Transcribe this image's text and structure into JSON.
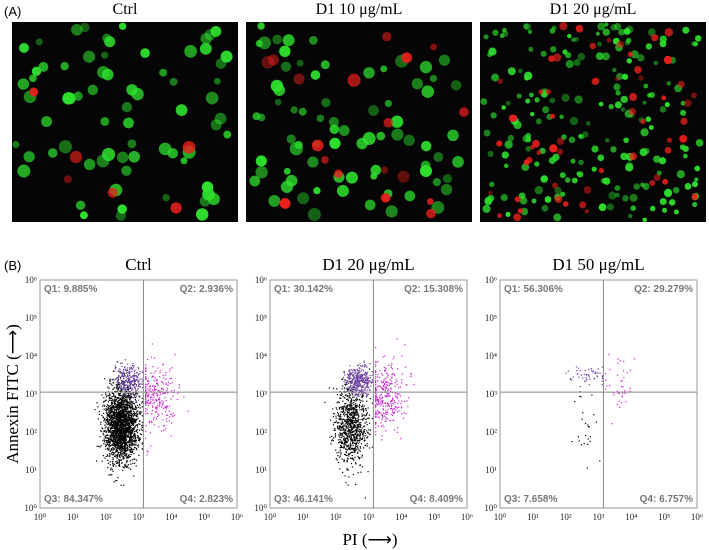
{
  "panel_a": {
    "label": "(A)",
    "images": [
      {
        "title": "Ctrl"
      },
      {
        "title": "D1 10 μg/mL"
      },
      {
        "title": "D1 20 μg/mL"
      }
    ]
  },
  "panel_b": {
    "label": "(B)",
    "y_axis_label": "Annexin FITC (⟶)",
    "x_axis_label": "PI (⟶)",
    "tick_labels": [
      "10⁰",
      "10¹",
      "10²",
      "10³",
      "10⁴",
      "10⁵",
      "10⁶"
    ],
    "plots": [
      {
        "title": "Ctrl",
        "quadrants": [
          "Q1: 9.885%",
          "Q2: 2.936%",
          "Q3: 84.347%",
          "Q4: 2.823%"
        ]
      },
      {
        "title": "D1 20 μg/mL",
        "quadrants": [
          "Q1: 30.142%",
          "Q2: 15.308%",
          "Q3: 46.141%",
          "Q4: 8.409%"
        ]
      },
      {
        "title": "D1 50 μg/mL",
        "quadrants": [
          "Q1: 56.306%",
          "Q2: 29.279%",
          "Q3: 7.658%",
          "Q4: 6.757%"
        ]
      }
    ]
  }
}
